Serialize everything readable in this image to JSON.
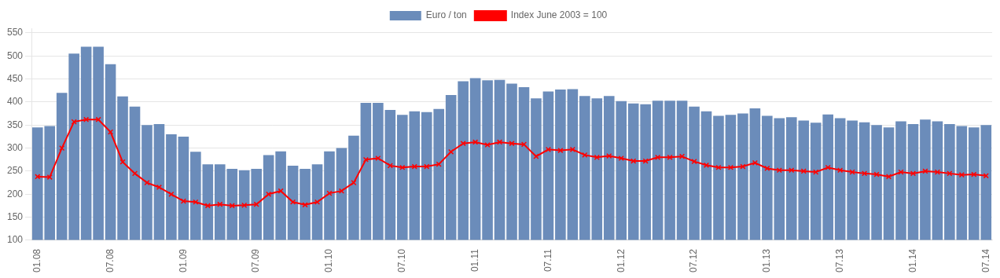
{
  "chart_data": {
    "type": "bar",
    "categories": [
      "01.08",
      null,
      null,
      null,
      null,
      null,
      "07.08",
      null,
      null,
      null,
      null,
      null,
      "01.09",
      null,
      null,
      null,
      null,
      null,
      "07.09",
      null,
      null,
      null,
      null,
      null,
      "01.10",
      null,
      null,
      null,
      null,
      null,
      "07.10",
      null,
      null,
      null,
      null,
      null,
      "01.11",
      null,
      null,
      null,
      null,
      null,
      "07.11",
      null,
      null,
      null,
      null,
      null,
      "01.12",
      null,
      null,
      null,
      null,
      null,
      "07.12",
      null,
      null,
      null,
      null,
      null,
      "01.13",
      null,
      null,
      null,
      null,
      null,
      "07.13",
      null,
      null,
      null,
      null,
      null,
      "01.14",
      null,
      null,
      null,
      null,
      null,
      "07.14"
    ],
    "series": [
      {
        "name": "Euro / ton",
        "type": "bar",
        "color": "#6b8cba",
        "values": [
          345,
          348,
          420,
          505,
          520,
          520,
          482,
          412,
          390,
          350,
          352,
          330,
          325,
          292,
          265,
          265,
          255,
          252,
          255,
          285,
          293,
          262,
          255,
          265,
          293,
          300,
          327,
          398,
          398,
          383,
          372,
          380,
          378,
          385,
          415,
          445,
          452,
          447,
          448,
          440,
          432,
          408,
          423,
          427,
          428,
          413,
          408,
          413,
          402,
          397,
          395,
          403,
          403,
          403,
          390,
          380,
          370,
          372,
          375,
          386,
          370,
          365,
          367,
          360,
          355,
          373,
          365,
          360,
          356,
          350,
          345,
          358,
          352,
          362,
          358,
          352,
          348,
          345,
          350
        ]
      },
      {
        "name": "Index June 2003 = 100",
        "type": "line",
        "color": "#ff0000",
        "marker": "x",
        "values": [
          238,
          237,
          300,
          357,
          362,
          362,
          335,
          270,
          245,
          225,
          215,
          200,
          185,
          183,
          175,
          178,
          175,
          176,
          178,
          200,
          207,
          183,
          177,
          183,
          202,
          207,
          225,
          275,
          278,
          262,
          258,
          260,
          260,
          265,
          292,
          310,
          313,
          307,
          313,
          310,
          308,
          282,
          297,
          295,
          297,
          285,
          280,
          283,
          278,
          272,
          272,
          280,
          280,
          282,
          271,
          263,
          258,
          258,
          260,
          268,
          256,
          252,
          252,
          250,
          248,
          258,
          252,
          248,
          245,
          243,
          238,
          248,
          245,
          250,
          248,
          245,
          242,
          243,
          240
        ]
      }
    ],
    "ylim": [
      100,
      560
    ],
    "yticks": [
      100,
      150,
      200,
      250,
      300,
      350,
      400,
      450,
      500,
      550
    ],
    "grid": true,
    "legend": "top"
  }
}
